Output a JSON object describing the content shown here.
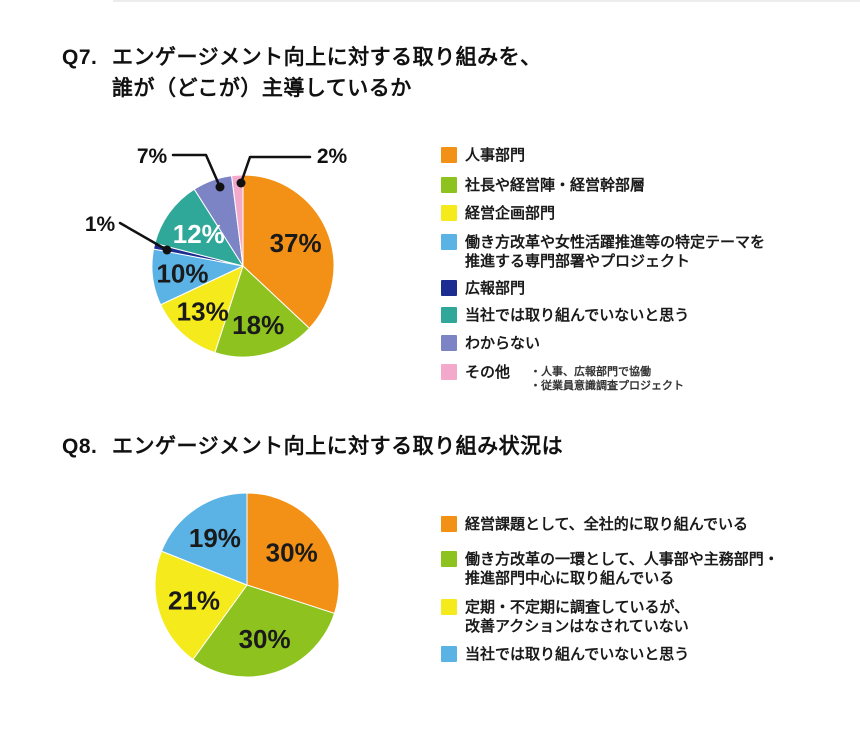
{
  "page": {
    "background": "#ffffff",
    "text_color": "#111111"
  },
  "q7_title": {
    "prefix": "Q7.",
    "line1": "エンゲージメント向上に対する取り組みを、",
    "line2": "誰が（どこが）主導しているか"
  },
  "q8_title": {
    "prefix": "Q8.",
    "line1": "エンゲージメント向上に対する取り組み状況は"
  },
  "chart_data": [
    {
      "id": "q7",
      "type": "pie",
      "title": "Q7. エンゲージメント向上に対する取り組みを、誰が（どこが）主導しているか",
      "unit": "%",
      "start_angle_deg": 0,
      "direction": "clockwise",
      "legend_position": "right",
      "slices": [
        {
          "label": "人事部門",
          "value": 37,
          "color": "#F39117",
          "label_pos": "inside",
          "label_color": "#1a1a1a"
        },
        {
          "label": "社長や経営陣・経営幹部層",
          "value": 18,
          "color": "#8EC21F",
          "label_pos": "inside",
          "label_color": "#1a1a1a"
        },
        {
          "label": "経営企画部門",
          "value": 13,
          "color": "#F5EA1C",
          "label_pos": "inside",
          "label_color": "#1a1a1a"
        },
        {
          "label": "働き方改革や女性活躍推進等の特定テーマを推進する専門部署やプロジェクト",
          "legend_lines": [
            "働き方改革や女性活躍推進等の特定テーマを",
            "推進する専門部署やプロジェクト"
          ],
          "value": 10,
          "color": "#5BB2E5",
          "label_pos": "inside",
          "label_color": "#1a1a1a"
        },
        {
          "label": "広報部門",
          "value": 1,
          "color": "#1B2D90",
          "label_pos": "callout"
        },
        {
          "label": "当社では取り組んでいないと思う",
          "value": 12,
          "color": "#2FA89A",
          "label_pos": "inside",
          "label_color": "#ffffff"
        },
        {
          "label": "わからない",
          "value": 7,
          "color": "#7C84C6",
          "label_pos": "callout"
        },
        {
          "label": "その他",
          "value": 2,
          "color": "#F3A9CB",
          "label_pos": "callout",
          "note_lines": [
            "・人事、広報部門で協働",
            "・従業員意識調査プロジェクト"
          ]
        }
      ]
    },
    {
      "id": "q8",
      "type": "pie",
      "title": "Q8. エンゲージメント向上に対する取り組み状況は",
      "unit": "%",
      "start_angle_deg": 0,
      "direction": "clockwise",
      "legend_position": "right",
      "slices": [
        {
          "label": "経営課題として、全社的に取り組んでいる",
          "value": 30,
          "color": "#F39117",
          "label_pos": "inside",
          "label_color": "#1a1a1a"
        },
        {
          "label": "働き方改革の一環として、人事部や主務部門・推進部門中心に取り組んでいる",
          "legend_lines": [
            "働き方改革の一環として、人事部や主務部門・",
            "推進部門中心に取り組んでいる"
          ],
          "value": 30,
          "color": "#8EC21F",
          "label_pos": "inside",
          "label_color": "#1a1a1a"
        },
        {
          "label": "定期・不定期に調査しているが、改善アクションはなされていない",
          "legend_lines": [
            "定期・不定期に調査しているが、",
            "改善アクションはなされていない"
          ],
          "value": 21,
          "color": "#F5EA1C",
          "label_pos": "inside",
          "label_color": "#1a1a1a"
        },
        {
          "label": "当社では取り組んでいないと思う",
          "value": 19,
          "color": "#5BB2E5",
          "label_pos": "inside",
          "label_color": "#1a1a1a"
        }
      ]
    }
  ]
}
